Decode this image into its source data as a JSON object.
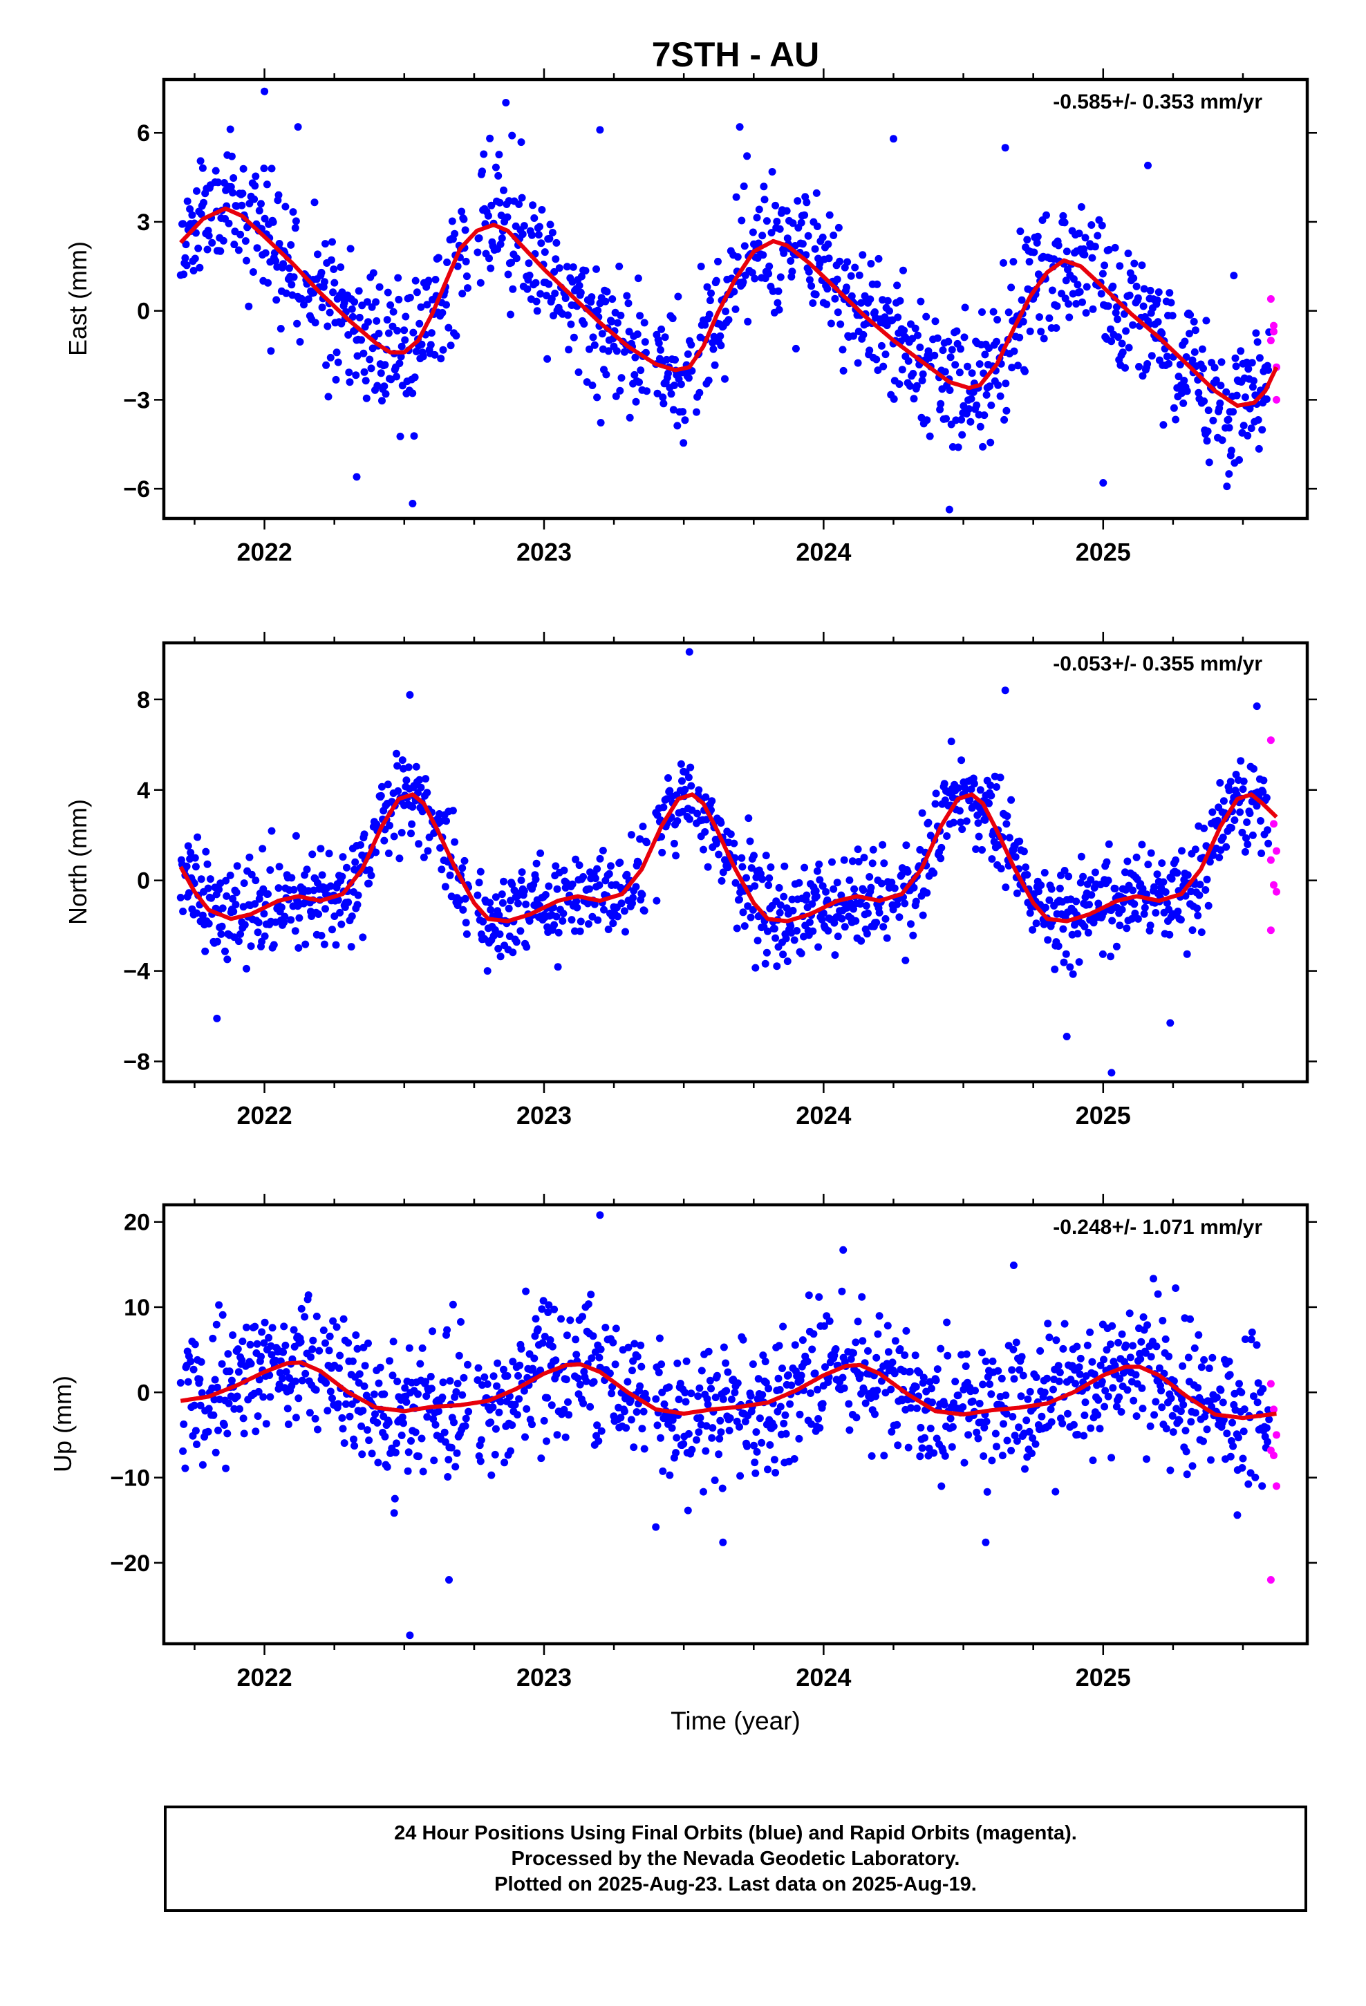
{
  "title": "7STH - AU",
  "colors": {
    "final": "#0000ff",
    "rapid": "#ff00ff",
    "model": "#e8000b"
  },
  "chart_data": [
    {
      "type": "scatter",
      "ylabel": "East (mm)",
      "rate_text": "-0.585+/- 0.353 mm/yr",
      "xlim": [
        2021.64,
        2025.73
      ],
      "ylim": [
        -7.0,
        7.8
      ],
      "xticks": [
        2022,
        2023,
        2024,
        2025
      ],
      "yticks": [
        -6,
        -3,
        0,
        3,
        6
      ],
      "model": {
        "x": [
          2021.7,
          2021.78,
          2021.86,
          2021.92,
          2022.0,
          2022.1,
          2022.2,
          2022.3,
          2022.4,
          2022.45,
          2022.5,
          2022.55,
          2022.6,
          2022.65,
          2022.7,
          2022.76,
          2022.82,
          2022.87,
          2022.92,
          2023.0,
          2023.1,
          2023.2,
          2023.3,
          2023.4,
          2023.47,
          2023.52,
          2023.57,
          2023.62,
          2023.68,
          2023.75,
          2023.82,
          2023.87,
          2023.95,
          2024.05,
          2024.15,
          2024.25,
          2024.35,
          2024.45,
          2024.52,
          2024.56,
          2024.62,
          2024.68,
          2024.74,
          2024.8,
          2024.86,
          2024.92,
          2025.0,
          2025.1,
          2025.2,
          2025.3,
          2025.4,
          2025.48,
          2025.54,
          2025.58,
          2025.62
        ],
        "y": [
          2.3,
          3.1,
          3.45,
          3.2,
          2.5,
          1.6,
          0.6,
          -0.3,
          -1.1,
          -1.4,
          -1.4,
          -1.0,
          -0.1,
          1.0,
          2.1,
          2.7,
          2.9,
          2.7,
          2.2,
          1.4,
          0.5,
          -0.4,
          -1.2,
          -1.8,
          -2.0,
          -1.9,
          -1.2,
          -0.1,
          1.0,
          2.0,
          2.35,
          2.2,
          1.6,
          0.7,
          -0.2,
          -1.0,
          -1.7,
          -2.4,
          -2.6,
          -2.5,
          -1.8,
          -0.6,
          0.5,
          1.3,
          1.7,
          1.5,
          0.8,
          -0.1,
          -0.9,
          -1.8,
          -2.7,
          -3.2,
          -3.1,
          -2.7,
          -1.9
        ]
      },
      "rapid": {
        "x": [
          2025.6,
          2025.61,
          2025.62,
          2025.6,
          2025.62,
          2025.61
        ],
        "y": [
          0.4,
          -0.5,
          -1.9,
          -1.0,
          -3.0,
          -0.7
        ]
      }
    },
    {
      "type": "scatter",
      "ylabel": "North (mm)",
      "rate_text": "-0.053+/- 0.355 mm/yr",
      "xlim": [
        2021.64,
        2025.73
      ],
      "ylim": [
        -8.9,
        10.5
      ],
      "xticks": [
        2022,
        2023,
        2024,
        2025
      ],
      "yticks": [
        -8,
        -4,
        0,
        4,
        8
      ],
      "model": {
        "x": [
          2021.7,
          2021.75,
          2021.8,
          2021.88,
          2021.95,
          2022.05,
          2022.12,
          2022.2,
          2022.28,
          2022.35,
          2022.42,
          2022.48,
          2022.53,
          2022.57,
          2022.62,
          2022.68,
          2022.75,
          2022.8,
          2022.87,
          2022.95,
          2023.05,
          2023.12,
          2023.2,
          2023.28,
          2023.35,
          2023.42,
          2023.48,
          2023.53,
          2023.57,
          2023.62,
          2023.68,
          2023.75,
          2023.8,
          2023.87,
          2023.95,
          2024.05,
          2024.12,
          2024.2,
          2024.28,
          2024.35,
          2024.42,
          2024.48,
          2024.53,
          2024.57,
          2024.62,
          2024.68,
          2024.75,
          2024.8,
          2024.87,
          2024.95,
          2025.05,
          2025.12,
          2025.2,
          2025.28,
          2025.35,
          2025.42,
          2025.48,
          2025.53,
          2025.57,
          2025.62
        ],
        "y": [
          0.6,
          -0.5,
          -1.3,
          -1.7,
          -1.5,
          -0.9,
          -0.7,
          -0.9,
          -0.6,
          0.5,
          2.4,
          3.6,
          3.8,
          3.4,
          2.2,
          0.6,
          -1.0,
          -1.7,
          -1.8,
          -1.5,
          -0.9,
          -0.7,
          -0.9,
          -0.6,
          0.5,
          2.4,
          3.6,
          3.8,
          3.4,
          2.2,
          0.6,
          -1.0,
          -1.7,
          -1.8,
          -1.5,
          -0.9,
          -0.7,
          -0.9,
          -0.6,
          0.5,
          2.4,
          3.6,
          3.8,
          3.4,
          2.2,
          0.6,
          -1.0,
          -1.7,
          -1.8,
          -1.5,
          -0.9,
          -0.7,
          -0.9,
          -0.6,
          0.5,
          2.4,
          3.6,
          3.8,
          3.4,
          2.8
        ]
      },
      "rapid": {
        "x": [
          2025.6,
          2025.61,
          2025.62,
          2025.6,
          2025.61,
          2025.62,
          2025.6
        ],
        "y": [
          6.2,
          2.5,
          1.3,
          0.9,
          -0.2,
          -0.5,
          -2.2
        ]
      }
    },
    {
      "type": "scatter",
      "ylabel": "Up (mm)",
      "rate_text": "-0.248+/- 1.071 mm/yr",
      "xlim": [
        2021.64,
        2025.73
      ],
      "ylim": [
        -29.5,
        22.0
      ],
      "xticks": [
        2022,
        2023,
        2024,
        2025
      ],
      "yticks": [
        -20,
        -10,
        0,
        10,
        20
      ],
      "xlabel": "Time (year)",
      "model": {
        "x": [
          2021.7,
          2021.8,
          2021.9,
          2022.0,
          2022.08,
          2022.13,
          2022.2,
          2022.3,
          2022.4,
          2022.5,
          2022.6,
          2022.7,
          2022.8,
          2022.9,
          2023.0,
          2023.08,
          2023.13,
          2023.2,
          2023.3,
          2023.4,
          2023.5,
          2023.6,
          2023.7,
          2023.8,
          2023.9,
          2024.0,
          2024.08,
          2024.13,
          2024.2,
          2024.3,
          2024.4,
          2024.5,
          2024.6,
          2024.7,
          2024.8,
          2024.9,
          2025.0,
          2025.08,
          2025.13,
          2025.2,
          2025.3,
          2025.4,
          2025.5,
          2025.62
        ],
        "y": [
          -1.0,
          -0.5,
          0.8,
          2.4,
          3.4,
          3.5,
          2.5,
          0.0,
          -1.8,
          -2.2,
          -1.7,
          -1.5,
          -1.0,
          0.4,
          2.2,
          3.2,
          3.3,
          2.4,
          0.0,
          -2.0,
          -2.5,
          -2.0,
          -1.7,
          -1.2,
          0.2,
          2.0,
          3.1,
          3.2,
          2.2,
          -0.2,
          -2.2,
          -2.6,
          -2.1,
          -1.8,
          -1.3,
          0.1,
          2.0,
          3.0,
          3.0,
          2.0,
          -0.5,
          -2.6,
          -3.0,
          -2.5
        ]
      },
      "rapid": {
        "x": [
          2025.6,
          2025.61,
          2025.62,
          2025.6,
          2025.61,
          2025.62,
          2025.6
        ],
        "y": [
          1.0,
          -2.0,
          -5.0,
          -6.8,
          -7.4,
          -11.0,
          -22.0
        ]
      }
    }
  ],
  "footer": {
    "line1": "24 Hour Positions Using Final Orbits (blue) and Rapid Orbits (magenta).",
    "line2": "Processed by the Nevada Geodetic Laboratory.",
    "line3": "Plotted on 2025-Aug-23. Last data on 2025-Aug-19."
  }
}
